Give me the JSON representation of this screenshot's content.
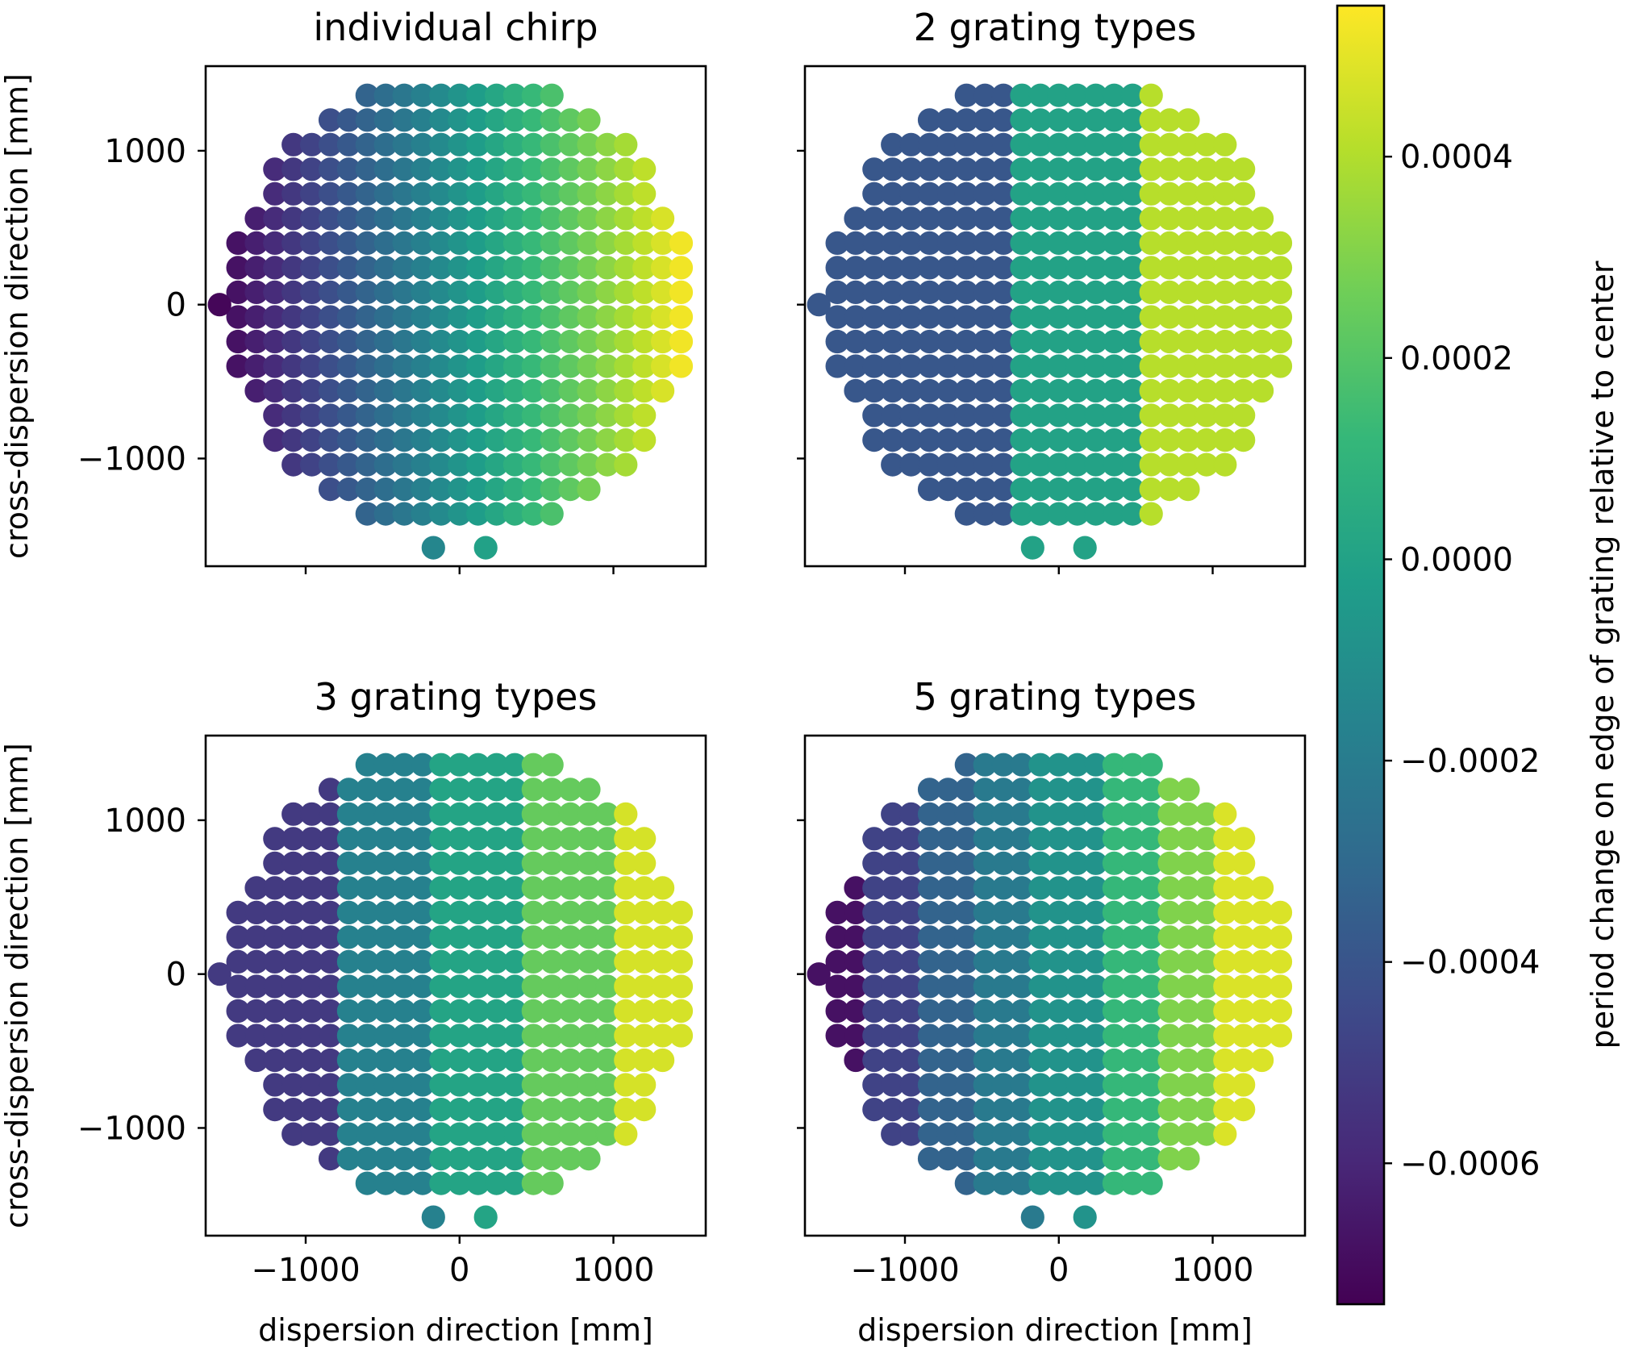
{
  "figure": {
    "colorbar": {
      "label": "period change on edge of grating relative to center",
      "range": [
        -0.00074,
        0.00055
      ],
      "ticks": [
        {
          "value": 0.0004,
          "label": "0.0004"
        },
        {
          "value": 0.0002,
          "label": "0.0002"
        },
        {
          "value": 0.0,
          "label": "0.0000"
        },
        {
          "value": -0.0002,
          "label": "−0.0002"
        },
        {
          "value": -0.0004,
          "label": "−0.0004"
        },
        {
          "value": -0.0006,
          "label": "−0.0006"
        }
      ],
      "colormap": "viridis"
    }
  },
  "chart_data": [
    {
      "type": "scatter",
      "title": "individual chirp",
      "xlabel": "",
      "ylabel": "cross-dispersion direction [mm]",
      "xlim": [
        -1650,
        1600
      ],
      "ylim": [
        -1700,
        1550
      ],
      "xticks": [
        {
          "value": -1000,
          "label": ""
        },
        {
          "value": 0,
          "label": ""
        },
        {
          "value": 1000,
          "label": ""
        }
      ],
      "yticks": [
        {
          "value": 1000,
          "label": "1000"
        },
        {
          "value": 0,
          "label": "0"
        },
        {
          "value": -1000,
          "label": "−1000"
        }
      ],
      "layout": {
        "x_spacing_mm": 120,
        "y_spacing_mm": 160,
        "aperture_radius_mm": 1500,
        "notch": "gap at bottom center between x=-170 and x=170"
      },
      "color_mapping": {
        "mode": "continuous",
        "x_at_min_color": -1540,
        "x_at_max_color": 1450,
        "value_min": -0.00072,
        "value_max": 0.00053
      }
    },
    {
      "type": "scatter",
      "title": "2 grating types",
      "xlabel": "",
      "ylabel": "",
      "xlim": [
        -1650,
        1600
      ],
      "ylim": [
        -1700,
        1550
      ],
      "xticks": [
        {
          "value": -1000,
          "label": ""
        },
        {
          "value": 0,
          "label": ""
        },
        {
          "value": 1000,
          "label": ""
        }
      ],
      "yticks": [
        {
          "value": 1000,
          "label": ""
        },
        {
          "value": 0,
          "label": ""
        },
        {
          "value": -1000,
          "label": ""
        }
      ],
      "color_mapping": {
        "mode": "bands",
        "bands": [
          {
            "x_min": -1650,
            "x_max": -320,
            "value": -0.00039
          },
          {
            "x_min": -320,
            "x_max": 600,
            "value": 0.0
          },
          {
            "x_min": 600,
            "x_max": 1650,
            "value": 0.00041
          }
        ]
      }
    },
    {
      "type": "scatter",
      "title": "3 grating types",
      "xlabel": "dispersion direction [mm]",
      "ylabel": "cross-dispersion direction [mm]",
      "xlim": [
        -1650,
        1600
      ],
      "ylim": [
        -1700,
        1550
      ],
      "xticks": [
        {
          "value": -1000,
          "label": "−1000"
        },
        {
          "value": 0,
          "label": "0"
        },
        {
          "value": 1000,
          "label": "1000"
        }
      ],
      "yticks": [
        {
          "value": 1000,
          "label": "1000"
        },
        {
          "value": 0,
          "label": "0"
        },
        {
          "value": -1000,
          "label": "−1000"
        }
      ],
      "color_mapping": {
        "mode": "bands",
        "bands": [
          {
            "x_min": -1650,
            "x_max": -740,
            "value": -0.00052
          },
          {
            "x_min": -740,
            "x_max": -160,
            "value": -0.00017
          },
          {
            "x_min": -160,
            "x_max": 430,
            "value": 1e-05
          },
          {
            "x_min": 430,
            "x_max": 1020,
            "value": 0.00024
          },
          {
            "x_min": 1020,
            "x_max": 1650,
            "value": 0.00047
          }
        ]
      }
    },
    {
      "type": "scatter",
      "title": "5 grating types",
      "xlabel": "dispersion direction [mm]",
      "ylabel": "",
      "xlim": [
        -1650,
        1600
      ],
      "ylim": [
        -1700,
        1550
      ],
      "xticks": [
        {
          "value": -1000,
          "label": "−1000"
        },
        {
          "value": 0,
          "label": "0"
        },
        {
          "value": 1000,
          "label": "1000"
        }
      ],
      "yticks": [
        {
          "value": 1000,
          "label": ""
        },
        {
          "value": 0,
          "label": ""
        },
        {
          "value": -1000,
          "label": ""
        }
      ],
      "color_mapping": {
        "mode": "bands",
        "bands": [
          {
            "x_min": -1650,
            "x_max": -1200,
            "value": -0.00068
          },
          {
            "x_min": -1200,
            "x_max": -850,
            "value": -0.00048
          },
          {
            "x_min": -850,
            "x_max": -500,
            "value": -0.00033
          },
          {
            "x_min": -500,
            "x_max": -130,
            "value": -0.00021
          },
          {
            "x_min": -130,
            "x_max": 260,
            "value": -8e-05
          },
          {
            "x_min": 260,
            "x_max": 660,
            "value": 0.00012
          },
          {
            "x_min": 660,
            "x_max": 1070,
            "value": 0.0003
          },
          {
            "x_min": 1070,
            "x_max": 1650,
            "value": 0.00048
          }
        ]
      }
    }
  ]
}
